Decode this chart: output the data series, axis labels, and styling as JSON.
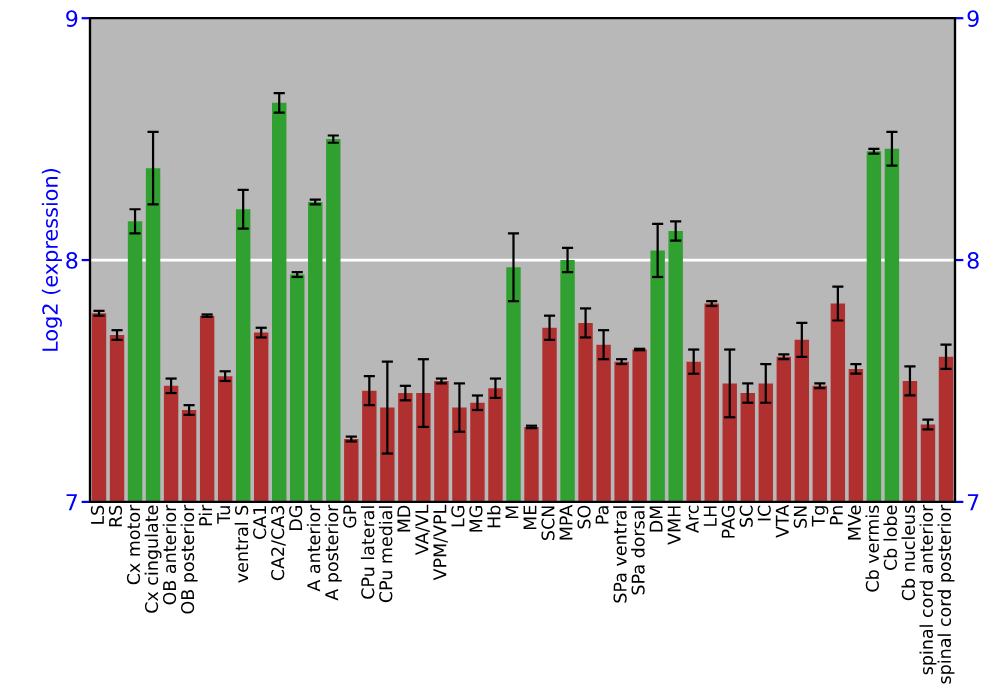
{
  "chart_data": {
    "type": "bar",
    "ylabel": "Log2 (expression)",
    "categories": [
      "LS",
      "RS",
      "Cx motor",
      "Cx cingulate",
      "OB anterior",
      "OB posterior",
      "Pir",
      "Tu",
      "ventral S",
      "CA1",
      "CA2/CA3",
      "DG",
      "A anterior",
      "A posterior",
      "GP",
      "CPu lateral",
      "CPu medial",
      "MD",
      "VA/VL",
      "VPM/VPL",
      "LG",
      "MG",
      "Hb",
      "M",
      "ME",
      "SCN",
      "MPA",
      "SO",
      "Pa",
      "SPa ventral",
      "SPa dorsal",
      "DM",
      "VMH",
      "Arc",
      "LH",
      "PAG",
      "SC",
      "IC",
      "VTA",
      "SN",
      "Tg",
      "Pn",
      "MVe",
      "Cb vermis",
      "Cb lobe",
      "Cb nucleus",
      "spinal cord anterior",
      "spinal cord posterior"
    ],
    "values": [
      7.78,
      7.69,
      8.16,
      8.38,
      7.48,
      7.38,
      7.77,
      7.52,
      8.21,
      7.7,
      8.65,
      7.94,
      8.24,
      8.5,
      7.26,
      7.46,
      7.39,
      7.45,
      7.45,
      7.5,
      7.39,
      7.41,
      7.47,
      7.97,
      7.31,
      7.72,
      8.0,
      7.74,
      7.65,
      7.58,
      7.63,
      8.04,
      8.12,
      7.58,
      7.82,
      7.49,
      7.45,
      7.49,
      7.6,
      7.67,
      7.48,
      7.82,
      7.55,
      8.45,
      8.46,
      7.5,
      7.32,
      7.6
    ],
    "errors": [
      0.01,
      0.02,
      0.05,
      0.15,
      0.03,
      0.02,
      0.005,
      0.02,
      0.08,
      0.02,
      0.04,
      0.01,
      0.01,
      0.015,
      0.01,
      0.06,
      0.19,
      0.03,
      0.14,
      0.01,
      0.1,
      0.03,
      0.04,
      0.14,
      0.005,
      0.05,
      0.05,
      0.06,
      0.06,
      0.01,
      0.003,
      0.11,
      0.04,
      0.05,
      0.01,
      0.14,
      0.04,
      0.08,
      0.01,
      0.07,
      0.01,
      0.07,
      0.02,
      0.01,
      0.07,
      0.06,
      0.02,
      0.05
    ],
    "colors": [
      "#b03030",
      "#b03030",
      "#30a030",
      "#30a030",
      "#b03030",
      "#b03030",
      "#b03030",
      "#b03030",
      "#30a030",
      "#b03030",
      "#30a030",
      "#30a030",
      "#30a030",
      "#30a030",
      "#b03030",
      "#b03030",
      "#b03030",
      "#b03030",
      "#b03030",
      "#b03030",
      "#b03030",
      "#b03030",
      "#b03030",
      "#30a030",
      "#b03030",
      "#b03030",
      "#30a030",
      "#b03030",
      "#b03030",
      "#b03030",
      "#b03030",
      "#30a030",
      "#30a030",
      "#b03030",
      "#b03030",
      "#b03030",
      "#b03030",
      "#b03030",
      "#b03030",
      "#b03030",
      "#b03030",
      "#b03030",
      "#b03030",
      "#30a030",
      "#30a030",
      "#b03030",
      "#b03030",
      "#b03030"
    ],
    "ylim": [
      7,
      9
    ],
    "yticks": [
      7,
      8,
      9
    ],
    "y2lim": [
      7,
      9
    ],
    "y2ticks": [
      7,
      8,
      9
    ],
    "grid": "y"
  }
}
